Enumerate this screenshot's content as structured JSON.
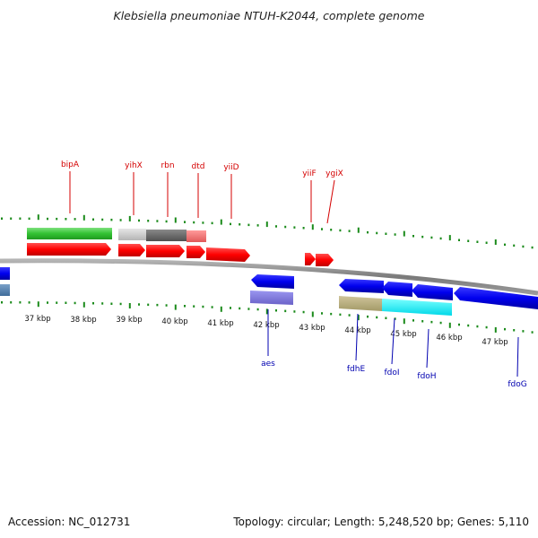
{
  "title": "Klebsiella pneumoniae NTUH-K2044, complete genome",
  "footer": {
    "accession": "Accession: NC_012731",
    "topology": "Topology: circular; Length: 5,248,520 bp; Genes: 5,110"
  },
  "scale_labels": [
    "37 kbp",
    "38 kbp",
    "39 kbp",
    "40 kbp",
    "41 kbp",
    "42 kbp",
    "43 kbp",
    "44 kbp",
    "45 kbp",
    "46 kbp",
    "47 kbp"
  ],
  "top_gene_labels": [
    "bipA",
    "yihX",
    "rbn",
    "dtd",
    "yiiD",
    "yiiF",
    "ygiX"
  ],
  "bottom_gene_labels": [
    "aes",
    "fdhE",
    "fdoI",
    "fdoH",
    "fdoG"
  ],
  "colors": {
    "forward_cds": "#ff0000",
    "reverse_cds": "#0000ee",
    "backbone": "#8a8a8a",
    "gc_ticks": "#1a8a1a",
    "label_forward": "#d40000",
    "label_reverse": "#0000b0"
  }
}
